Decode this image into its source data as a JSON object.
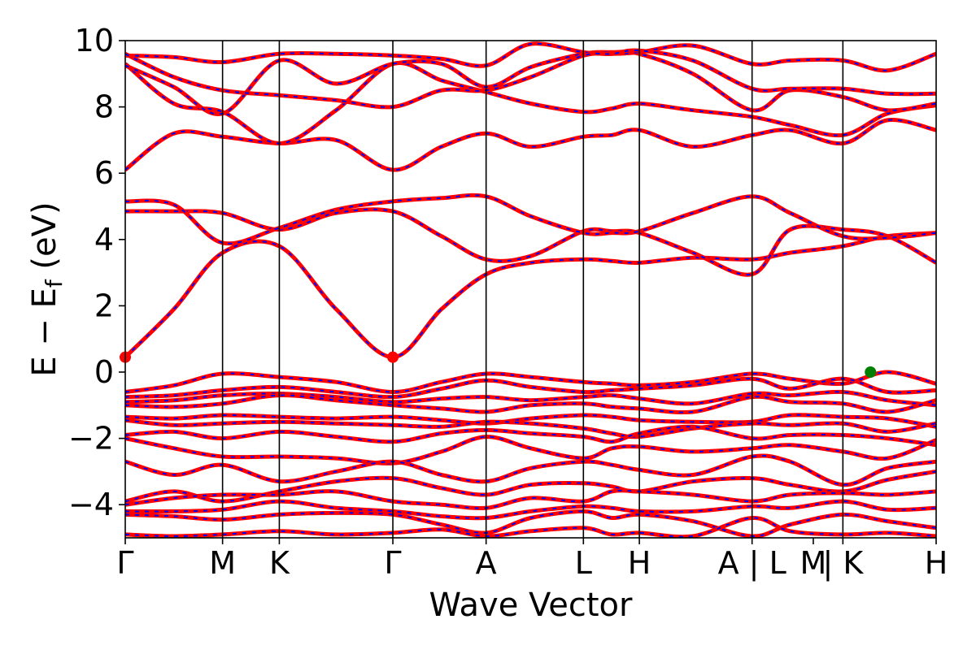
{
  "chart_data": {
    "type": "line",
    "xlabel": "Wave Vector",
    "ylabel": "E − E",
    "ylabel_subscript": "f",
    "ylabel_unit": " (eV)",
    "ylim": [
      -5,
      10
    ],
    "xlim": [
      0,
      1
    ],
    "yticks": [
      "−4",
      "−2",
      "0",
      "2",
      "4",
      "6",
      "8",
      "10"
    ],
    "ytick_values": [
      -4,
      -2,
      0,
      2,
      4,
      6,
      8,
      10
    ],
    "kpoints": [
      {
        "label": "Γ",
        "pos": 0.0
      },
      {
        "label": "M",
        "pos": 0.12
      },
      {
        "label": "K",
        "pos": 0.19
      },
      {
        "label": "Γ",
        "pos": 0.33
      },
      {
        "label": "A",
        "pos": 0.445
      },
      {
        "label": "L",
        "pos": 0.565
      },
      {
        "label": "H",
        "pos": 0.634
      },
      {
        "label": "A | L",
        "pos": 0.773
      },
      {
        "label": "M",
        "pos": 0.8485
      },
      {
        "label": "| K",
        "pos": 0.885
      },
      {
        "label": "H",
        "pos": 1.0
      }
    ],
    "vertical_lines": [
      0.12,
      0.19,
      0.33,
      0.445,
      0.565,
      0.634,
      0.773,
      0.885
    ],
    "grid": false,
    "band_colors": {
      "line": "#ff0000",
      "dash": "#0000ff"
    },
    "marker_colors": {
      "cbm": "#ff0000",
      "vbm": "#008000"
    },
    "cbm_points": [
      [
        0.0,
        0.45
      ],
      [
        0.33,
        0.45
      ]
    ],
    "vbm_points": [
      [
        0.919,
        0.0
      ]
    ],
    "bands": [
      {
        "x": [
          0,
          0.06,
          0.12,
          0.19,
          0.26,
          0.33,
          0.39,
          0.445,
          0.5,
          0.565,
          0.6,
          0.634,
          0.7,
          0.773,
          0.82,
          0.885,
          0.94,
          1
        ],
        "y": [
          0.45,
          1.9,
          3.6,
          3.8,
          1.9,
          0.45,
          1.9,
          2.95,
          3.3,
          3.4,
          3.35,
          3.3,
          3.45,
          3.4,
          3.6,
          3.8,
          4.1,
          4.2
        ]
      },
      {
        "x": [
          0,
          0.06,
          0.12,
          0.19,
          0.26,
          0.33,
          0.39,
          0.445,
          0.5,
          0.565,
          0.6,
          0.634,
          0.7,
          0.773,
          0.82,
          0.885,
          0.94,
          1
        ],
        "y": [
          4.85,
          4.85,
          4.8,
          4.3,
          4.8,
          4.85,
          4.1,
          3.4,
          3.5,
          4.25,
          4.25,
          4.2,
          3.6,
          2.95,
          4.3,
          4.3,
          4.1,
          3.3
        ]
      },
      {
        "x": [
          0,
          0.06,
          0.12,
          0.19,
          0.26,
          0.33,
          0.39,
          0.445,
          0.5,
          0.565,
          0.6,
          0.634,
          0.7,
          0.773,
          0.82,
          0.885,
          0.94,
          1
        ],
        "y": [
          5.15,
          5.05,
          3.9,
          4.35,
          4.9,
          5.15,
          5.25,
          5.3,
          4.7,
          4.2,
          4.2,
          4.25,
          4.8,
          5.3,
          4.8,
          4.1,
          4.05,
          4.2
        ]
      },
      {
        "x": [
          0,
          0.06,
          0.12,
          0.19,
          0.26,
          0.33,
          0.39,
          0.445,
          0.5,
          0.565,
          0.6,
          0.634,
          0.7,
          0.773,
          0.82,
          0.885,
          0.94,
          1
        ],
        "y": [
          6.1,
          7.2,
          7.1,
          6.9,
          7.0,
          6.1,
          6.8,
          7.2,
          6.8,
          7.1,
          7.15,
          7.3,
          6.8,
          7.15,
          7.3,
          6.9,
          7.6,
          7.3
        ]
      },
      {
        "x": [
          0,
          0.06,
          0.12,
          0.19,
          0.26,
          0.33,
          0.39,
          0.445,
          0.5,
          0.565,
          0.6,
          0.634,
          0.7,
          0.773,
          0.82,
          0.885,
          0.94,
          1
        ],
        "y": [
          9.3,
          8.1,
          7.85,
          6.9,
          7.9,
          9.3,
          8.8,
          8.45,
          8.1,
          7.85,
          7.95,
          8.1,
          7.9,
          7.7,
          7.45,
          7.15,
          7.8,
          8.05
        ]
      },
      {
        "x": [
          0,
          0.06,
          0.12,
          0.19,
          0.26,
          0.33,
          0.39,
          0.445,
          0.5,
          0.565,
          0.6,
          0.634,
          0.7,
          0.773,
          0.82,
          0.885,
          0.94,
          1
        ],
        "y": [
          9.25,
          8.6,
          7.8,
          9.4,
          8.7,
          9.3,
          9.3,
          8.6,
          9.2,
          9.6,
          9.65,
          9.6,
          9.0,
          7.9,
          8.5,
          8.3,
          7.9,
          8.1
        ]
      },
      {
        "x": [
          0,
          0.06,
          0.12,
          0.19,
          0.26,
          0.33,
          0.39,
          0.445,
          0.5,
          0.565,
          0.6,
          0.634,
          0.7,
          0.773,
          0.82,
          0.885,
          0.94,
          1
        ],
        "y": [
          9.55,
          9.5,
          9.35,
          9.6,
          9.6,
          9.55,
          9.45,
          9.25,
          9.9,
          9.65,
          9.6,
          9.65,
          9.85,
          9.3,
          9.4,
          9.4,
          9.1,
          9.6
        ]
      },
      {
        "x": [
          0,
          0.06,
          0.12,
          0.19,
          0.26,
          0.33,
          0.39,
          0.445,
          0.5,
          0.565,
          0.6,
          0.634,
          0.7,
          0.773,
          0.82,
          0.885,
          0.94,
          1
        ],
        "y": [
          9.6,
          8.9,
          8.5,
          8.35,
          8.2,
          8.0,
          8.5,
          8.5,
          8.9,
          9.55,
          9.6,
          9.7,
          9.4,
          8.55,
          8.55,
          8.55,
          8.4,
          8.4
        ]
      },
      {
        "x": [
          0,
          0.06,
          0.12,
          0.19,
          0.26,
          0.33,
          0.39,
          0.445,
          0.5,
          0.565,
          0.6,
          0.634,
          0.7,
          0.773,
          0.82,
          0.885,
          0.94,
          1
        ],
        "y": [
          -0.6,
          -0.4,
          -0.05,
          -0.15,
          -0.3,
          -0.6,
          -0.3,
          -0.05,
          -0.15,
          -0.3,
          -0.35,
          -0.4,
          -0.3,
          -0.05,
          -0.2,
          -0.35,
          0.0,
          -0.35
        ]
      },
      {
        "x": [
          0,
          0.06,
          0.12,
          0.19,
          0.26,
          0.33,
          0.39,
          0.445,
          0.5,
          0.565,
          0.6,
          0.634,
          0.7,
          0.773,
          0.82,
          0.885,
          0.94,
          1
        ],
        "y": [
          -0.75,
          -0.7,
          -0.55,
          -0.45,
          -0.6,
          -0.75,
          -0.5,
          -0.25,
          -0.45,
          -0.6,
          -0.55,
          -0.5,
          -0.4,
          -0.2,
          -0.5,
          -0.2,
          -0.6,
          -0.55
        ]
      },
      {
        "x": [
          0,
          0.06,
          0.12,
          0.19,
          0.26,
          0.33,
          0.39,
          0.445,
          0.5,
          0.565,
          0.6,
          0.634,
          0.7,
          0.773,
          0.82,
          0.885,
          0.94,
          1
        ],
        "y": [
          -0.9,
          -0.85,
          -0.7,
          -0.65,
          -0.75,
          -0.9,
          -0.8,
          -0.75,
          -0.85,
          -0.75,
          -0.7,
          -0.8,
          -0.95,
          -0.65,
          -0.7,
          -0.6,
          -0.85,
          -1.0
        ]
      },
      {
        "x": [
          0,
          0.06,
          0.12,
          0.19,
          0.26,
          0.33,
          0.39,
          0.445,
          0.5,
          0.565,
          0.6,
          0.634,
          0.7,
          0.773,
          0.82,
          0.885,
          0.94,
          1
        ],
        "y": [
          -1.0,
          -1.05,
          -0.95,
          -0.7,
          -0.85,
          -1.0,
          -1.1,
          -1.2,
          -1.0,
          -0.95,
          -1.05,
          -1.1,
          -1.2,
          -0.75,
          -0.9,
          -0.95,
          -1.2,
          -0.85
        ]
      },
      {
        "x": [
          0,
          0.06,
          0.12,
          0.19,
          0.26,
          0.33,
          0.39,
          0.445,
          0.5,
          0.565,
          0.6,
          0.634,
          0.7,
          0.773,
          0.82,
          0.885,
          0.94,
          1
        ],
        "y": [
          -1.35,
          -1.4,
          -1.3,
          -1.35,
          -1.4,
          -1.35,
          -1.45,
          -1.55,
          -1.4,
          -1.3,
          -1.35,
          -1.45,
          -1.5,
          -1.5,
          -1.3,
          -1.35,
          -1.4,
          -1.65
        ]
      },
      {
        "x": [
          0,
          0.06,
          0.12,
          0.19,
          0.26,
          0.33,
          0.39,
          0.445,
          0.5,
          0.565,
          0.6,
          0.634,
          0.7,
          0.773,
          0.82,
          0.885,
          0.94,
          1
        ],
        "y": [
          -1.45,
          -1.6,
          -1.55,
          -1.5,
          -1.55,
          -1.6,
          -1.65,
          -1.5,
          -1.55,
          -1.7,
          -1.85,
          -1.95,
          -1.7,
          -1.55,
          -1.6,
          -1.55,
          -1.8,
          -1.55
        ]
      },
      {
        "x": [
          0,
          0.06,
          0.12,
          0.19,
          0.26,
          0.33,
          0.39,
          0.445,
          0.5,
          0.565,
          0.6,
          0.634,
          0.7,
          0.773,
          0.82,
          0.885,
          0.94,
          1
        ],
        "y": [
          -1.9,
          -1.8,
          -2.0,
          -1.8,
          -1.95,
          -2.1,
          -1.85,
          -1.75,
          -1.85,
          -1.95,
          -2.1,
          -1.85,
          -1.65,
          -2.0,
          -1.9,
          -1.9,
          -2.0,
          -2.2
        ]
      },
      {
        "x": [
          0,
          0.06,
          0.12,
          0.19,
          0.26,
          0.33,
          0.39,
          0.445,
          0.5,
          0.565,
          0.6,
          0.634,
          0.7,
          0.773,
          0.82,
          0.885,
          0.94,
          1
        ],
        "y": [
          -2.0,
          -2.3,
          -2.55,
          -2.55,
          -2.6,
          -2.75,
          -2.4,
          -1.95,
          -2.3,
          -2.6,
          -2.3,
          -2.25,
          -2.4,
          -2.3,
          -2.2,
          -2.4,
          -2.6,
          -2.05
        ]
      },
      {
        "x": [
          0,
          0.06,
          0.12,
          0.19,
          0.26,
          0.33,
          0.39,
          0.445,
          0.5,
          0.565,
          0.6,
          0.634,
          0.7,
          0.773,
          0.82,
          0.885,
          0.94,
          1
        ],
        "y": [
          -2.7,
          -3.1,
          -2.8,
          -3.3,
          -3.0,
          -2.7,
          -3.1,
          -3.3,
          -2.9,
          -2.7,
          -2.8,
          -2.95,
          -3.1,
          -2.55,
          -2.7,
          -3.4,
          -2.9,
          -2.7
        ]
      },
      {
        "x": [
          0,
          0.06,
          0.12,
          0.19,
          0.26,
          0.33,
          0.39,
          0.445,
          0.5,
          0.565,
          0.6,
          0.634,
          0.7,
          0.773,
          0.82,
          0.885,
          0.94,
          1
        ],
        "y": [
          -3.9,
          -3.6,
          -3.9,
          -3.6,
          -3.3,
          -3.2,
          -3.5,
          -3.7,
          -3.4,
          -3.35,
          -3.45,
          -3.6,
          -3.3,
          -3.2,
          -3.4,
          -3.6,
          -3.25,
          -3.0
        ]
      },
      {
        "x": [
          0,
          0.06,
          0.12,
          0.19,
          0.26,
          0.33,
          0.39,
          0.445,
          0.5,
          0.565,
          0.6,
          0.634,
          0.7,
          0.773,
          0.82,
          0.885,
          0.94,
          1
        ],
        "y": [
          -4.0,
          -3.8,
          -3.7,
          -3.7,
          -3.6,
          -3.9,
          -4.0,
          -4.1,
          -3.8,
          -3.9,
          -3.6,
          -3.6,
          -3.7,
          -3.9,
          -3.7,
          -3.65,
          -3.7,
          -3.6
        ]
      },
      {
        "x": [
          0,
          0.06,
          0.12,
          0.19,
          0.26,
          0.33,
          0.39,
          0.445,
          0.5,
          0.565,
          0.6,
          0.634,
          0.7,
          0.773,
          0.82,
          0.885,
          0.94,
          1
        ],
        "y": [
          -4.2,
          -4.2,
          -4.15,
          -3.9,
          -4.1,
          -4.2,
          -4.35,
          -4.4,
          -4.2,
          -4.05,
          -4.1,
          -4.2,
          -4.2,
          -4.05,
          -4.1,
          -3.9,
          -4.15,
          -4.1
        ]
      },
      {
        "x": [
          0,
          0.06,
          0.12,
          0.19,
          0.26,
          0.33,
          0.39,
          0.445,
          0.5,
          0.565,
          0.6,
          0.634,
          0.7,
          0.773,
          0.82,
          0.885,
          0.94,
          1
        ],
        "y": [
          -4.3,
          -4.35,
          -4.45,
          -4.3,
          -4.25,
          -4.3,
          -4.6,
          -4.85,
          -4.4,
          -4.2,
          -4.4,
          -4.3,
          -4.5,
          -4.95,
          -4.6,
          -4.3,
          -4.5,
          -4.7
        ]
      },
      {
        "x": [
          0,
          0.06,
          0.12,
          0.19,
          0.26,
          0.33,
          0.39,
          0.445,
          0.5,
          0.565,
          0.6,
          0.634,
          0.7,
          0.773,
          0.82,
          0.885,
          0.94,
          1
        ],
        "y": [
          -4.9,
          -4.95,
          -4.9,
          -4.8,
          -4.9,
          -4.85,
          -4.75,
          -4.95,
          -4.8,
          -4.7,
          -4.9,
          -4.85,
          -4.95,
          -4.4,
          -4.8,
          -4.9,
          -4.85,
          -4.95
        ]
      }
    ]
  }
}
